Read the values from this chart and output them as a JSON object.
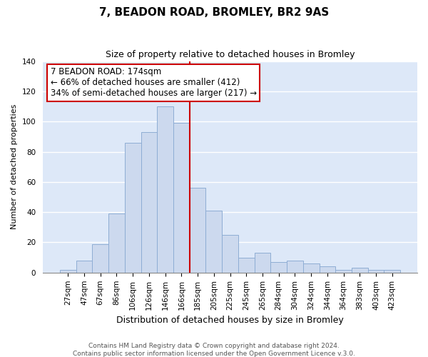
{
  "title": "7, BEADON ROAD, BROMLEY, BR2 9AS",
  "subtitle": "Size of property relative to detached houses in Bromley",
  "xlabel": "Distribution of detached houses by size in Bromley",
  "ylabel": "Number of detached properties",
  "bar_labels": [
    "27sqm",
    "47sqm",
    "67sqm",
    "86sqm",
    "106sqm",
    "126sqm",
    "146sqm",
    "166sqm",
    "185sqm",
    "205sqm",
    "225sqm",
    "245sqm",
    "265sqm",
    "284sqm",
    "304sqm",
    "324sqm",
    "344sqm",
    "364sqm",
    "383sqm",
    "403sqm",
    "423sqm"
  ],
  "bar_values": [
    2,
    8,
    19,
    39,
    86,
    93,
    110,
    99,
    56,
    41,
    25,
    10,
    13,
    7,
    8,
    6,
    4,
    2,
    3,
    2,
    2
  ],
  "bar_color": "#ccd9ee",
  "bar_edge_color": "#8eadd4",
  "vline_x_index": 7,
  "vline_color": "#cc0000",
  "annotation_title": "7 BEADON ROAD: 174sqm",
  "annotation_line1": "← 66% of detached houses are smaller (412)",
  "annotation_line2": "34% of semi-detached houses are larger (217) →",
  "annotation_box_facecolor": "#ffffff",
  "annotation_box_edgecolor": "#cc0000",
  "footer1": "Contains HM Land Registry data © Crown copyright and database right 2024.",
  "footer2": "Contains public sector information licensed under the Open Government Licence v.3.0.",
  "ylim": [
    0,
    140
  ],
  "yticks": [
    0,
    20,
    40,
    60,
    80,
    100,
    120,
    140
  ],
  "background_color": "#ffffff",
  "plot_bg_color": "#dde8f8",
  "grid_color": "#ffffff",
  "title_fontsize": 11,
  "subtitle_fontsize": 9,
  "xlabel_fontsize": 9,
  "ylabel_fontsize": 8,
  "tick_fontsize": 7.5,
  "footer_fontsize": 6.5,
  "ann_fontsize": 8.5
}
